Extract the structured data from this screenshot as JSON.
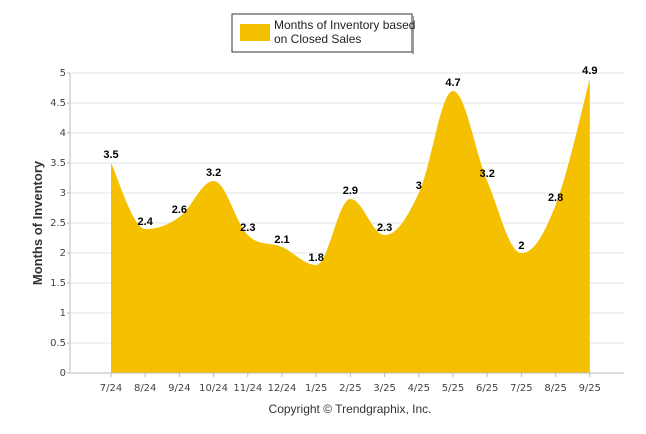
{
  "chart_data": {
    "type": "area",
    "title": "",
    "categories": [
      "7/24",
      "8/24",
      "9/24",
      "10/24",
      "11/24",
      "12/24",
      "1/25",
      "2/25",
      "3/25",
      "4/25",
      "5/25",
      "6/25",
      "7/25",
      "8/25",
      "9/25"
    ],
    "series": [
      {
        "name": "Months of Inventory based on Closed Sales",
        "values": [
          3.5,
          2.4,
          2.6,
          3.2,
          2.3,
          2.1,
          1.8,
          2.9,
          2.3,
          3,
          4.7,
          3.2,
          2,
          2.8,
          4.9
        ],
        "color": "#F5C000"
      }
    ],
    "xlabel": "",
    "ylabel": "Months of Inventory",
    "ylim": [
      0,
      5
    ],
    "yticks": [
      "0",
      "0.5",
      "1",
      "1.5",
      "2",
      "2.5",
      "3",
      "3.5",
      "4",
      "4.5",
      "5"
    ],
    "grid": true,
    "legend_position": "top-center"
  },
  "legend": {
    "line1": "Months of Inventory based",
    "line2": "on Closed Sales"
  },
  "credit": "Copyright © Trendgraphix, Inc.",
  "colors": {
    "fill": "#F5C000",
    "grid": "#E6E6E6",
    "axis": "#BBBBBB"
  }
}
